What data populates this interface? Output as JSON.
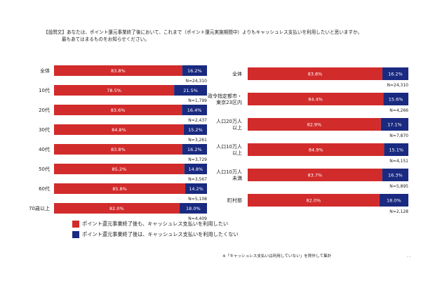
{
  "question": {
    "line1": "【設問文】あなたは、ポイント還元事業終了後において、これまで（ポイント還元実施期間中）よりもキャッシュレス支払いを利用したいと思いますか。",
    "line2": "最もあてはまるものをお知らせください。"
  },
  "colors": {
    "yes": "#d22b2b",
    "no": "#1a2a80"
  },
  "legend": {
    "yes_label": "ポイント還元事業終了後も、キャッシュレス支払いを利用したい",
    "no_label": "ポイント還元事業終了後は、キャッシュレス支払いを利用したくない"
  },
  "note": "※「キャッシュレス支払いは利用していない」を除外して集計",
  "page_mark": "- -",
  "chart_data": [
    {
      "type": "bar",
      "orientation": "horizontal",
      "stacked": true,
      "xlim": [
        0,
        100
      ],
      "categories": [
        "全体",
        "10代",
        "20代",
        "30代",
        "40代",
        "50代",
        "60代",
        "70歳以上"
      ],
      "series": [
        {
          "name": "ポイント還元事業終了後も、キャッシュレス支払いを利用したい",
          "values": [
            83.8,
            78.5,
            83.6,
            84.8,
            83.8,
            85.2,
            85.8,
            82.0
          ]
        },
        {
          "name": "ポイント還元事業終了後は、キャッシュレス支払いを利用したくない",
          "values": [
            16.2,
            21.5,
            16.4,
            15.2,
            16.2,
            14.8,
            14.2,
            18.0
          ]
        }
      ],
      "value_labels": {
        "yes": [
          "83.8%",
          "78.5%",
          "83.6%",
          "84.8%",
          "83.8%",
          "85.2%",
          "85.8%",
          "82.0%"
        ],
        "no": [
          "16.2%",
          "21.5%",
          "16.4%",
          "15.2%",
          "16.2%",
          "14.8%",
          "14.2%",
          "18.0%"
        ]
      },
      "n_labels": [
        "N=24,310",
        "N=1,799",
        "N=2,437",
        "N=3,261",
        "N=3,729",
        "N=3,567",
        "N=5,108",
        "N=4,409"
      ]
    },
    {
      "type": "bar",
      "orientation": "horizontal",
      "stacked": true,
      "xlim": [
        0,
        100
      ],
      "categories": [
        [
          "全体"
        ],
        [
          "政令指定都市・",
          "東京23区内"
        ],
        [
          "人口20万人",
          "以上"
        ],
        [
          "人口10万人",
          "以上"
        ],
        [
          "人口10万人",
          "未満"
        ],
        [
          "町村部"
        ]
      ],
      "series": [
        {
          "name": "ポイント還元事業終了後も、キャッシュレス支払いを利用したい",
          "values": [
            83.8,
            84.4,
            82.9,
            84.9,
            83.7,
            82.0
          ]
        },
        {
          "name": "ポイント還元事業終了後は、キャッシュレス支払いを利用したくない",
          "values": [
            16.2,
            15.6,
            17.1,
            15.1,
            16.3,
            18.0
          ]
        }
      ],
      "value_labels": {
        "yes": [
          "83.8%",
          "84.4%",
          "82.9%",
          "84.9%",
          "83.7%",
          "82.0%"
        ],
        "no": [
          "16.2%",
          "15.6%",
          "17.1%",
          "15.1%",
          "16.3%",
          "18.0%"
        ]
      },
      "n_labels": [
        "N=24,310",
        "N=4,266",
        "N=7,870",
        "N=4,151",
        "N=5,895",
        "N=2,128"
      ]
    }
  ]
}
